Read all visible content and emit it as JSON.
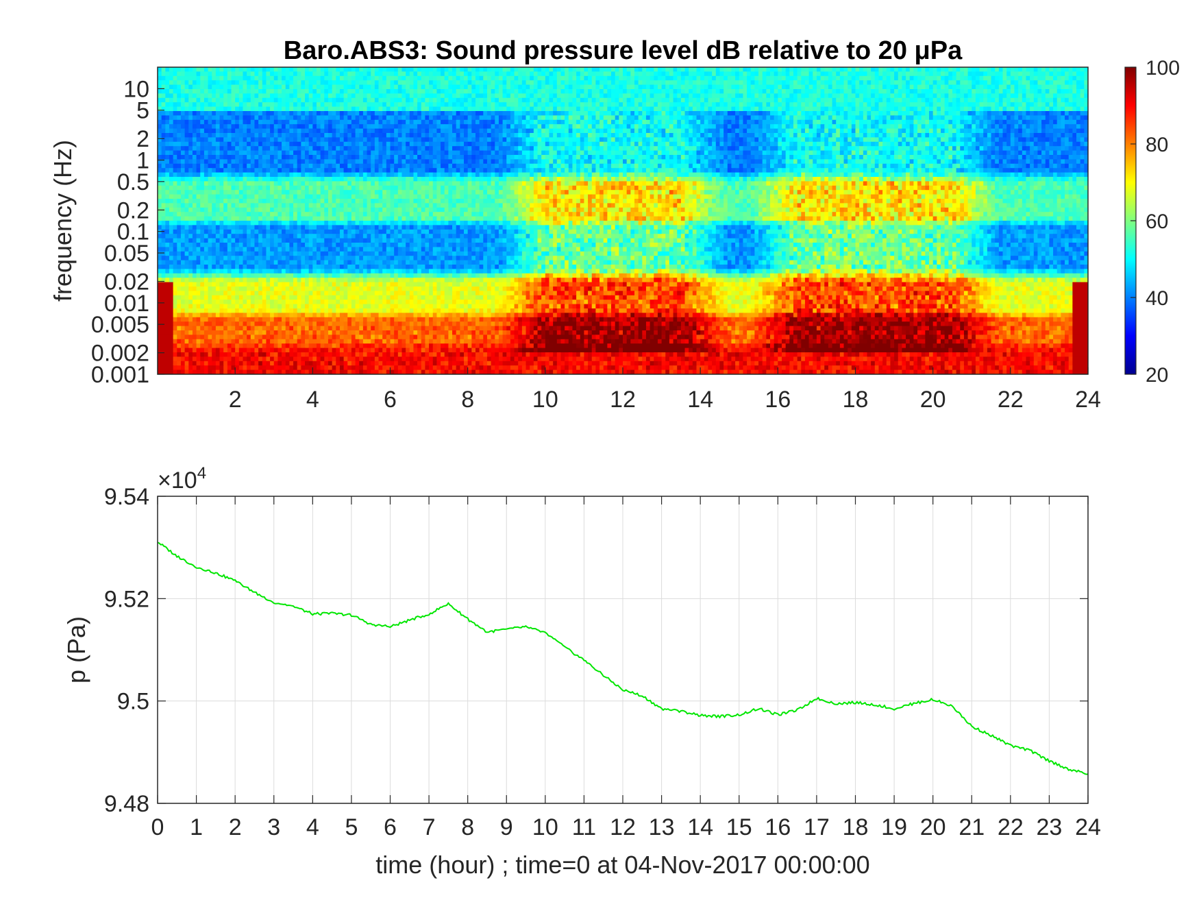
{
  "chart_data": [
    {
      "type": "heatmap",
      "title": "Baro.ABS3: Sound pressure level dB relative to 20 μPa",
      "ylabel": "frequency (Hz)",
      "xlabel": "",
      "y_scale": "log",
      "ylim": [
        0.001,
        20
      ],
      "xlim": [
        0,
        24
      ],
      "x_ticks": [
        2,
        4,
        6,
        8,
        10,
        12,
        14,
        16,
        18,
        20,
        22,
        24
      ],
      "x_tick_labels": [
        "2",
        "4",
        "6",
        "8",
        "10",
        "12",
        "14",
        "16",
        "18",
        "20",
        "22",
        "24"
      ],
      "y_ticks": [
        10,
        5,
        2,
        1,
        0.5,
        0.2,
        0.1,
        0.05,
        0.02,
        0.01,
        0.005,
        0.002,
        0.001
      ],
      "y_tick_labels": [
        "10",
        "5",
        "2",
        "1",
        "0.5",
        "0.2",
        "0.1",
        "0.05",
        "0.02",
        "0.01",
        "0.005",
        "0.002",
        "0.001"
      ],
      "colorbar": {
        "colormap": "jet",
        "range": [
          20,
          100
        ],
        "ticks": [
          20,
          40,
          60,
          80,
          100
        ],
        "tick_labels": [
          "20",
          "40",
          "60",
          "80",
          "100"
        ]
      },
      "level_bands": [
        {
          "freq_range": [
            5,
            20
          ],
          "level_db": 52
        },
        {
          "freq_range": [
            0.7,
            5
          ],
          "level_db": 40
        },
        {
          "freq_range": [
            0.15,
            0.5
          ],
          "level_db": 56
        },
        {
          "freq_range": [
            0.03,
            0.12
          ],
          "level_db": 42
        },
        {
          "freq_range": [
            0.008,
            0.02
          ],
          "level_db": 68
        },
        {
          "freq_range": [
            0.003,
            0.006
          ],
          "level_db": 82
        },
        {
          "freq_range": [
            0.001,
            0.002
          ],
          "level_db": 90
        }
      ],
      "active_periods_hours": [
        [
          10,
          13.5
        ],
        [
          16.5,
          20.5
        ]
      ]
    },
    {
      "type": "line",
      "xlabel": "time (hour) ; time=0 at 04-Nov-2017 00:00:00",
      "ylabel": "p (Pa)",
      "exponent_label": "×10",
      "exponent_power": "4",
      "xlim": [
        0,
        24
      ],
      "ylim": [
        94800,
        95400
      ],
      "grid": true,
      "line_color": "#00e600",
      "x_ticks": [
        0,
        1,
        2,
        3,
        4,
        5,
        6,
        7,
        8,
        9,
        10,
        11,
        12,
        13,
        14,
        15,
        16,
        17,
        18,
        19,
        20,
        21,
        22,
        23,
        24
      ],
      "x_tick_labels": [
        "0",
        "1",
        "2",
        "3",
        "4",
        "5",
        "6",
        "7",
        "8",
        "9",
        "10",
        "11",
        "12",
        "13",
        "14",
        "15",
        "16",
        "17",
        "18",
        "19",
        "20",
        "21",
        "22",
        "23",
        "24"
      ],
      "y_ticks": [
        94800,
        95000,
        95200,
        95400
      ],
      "y_tick_labels": [
        "9.48",
        "9.5",
        "9.52",
        "9.54"
      ],
      "series": [
        {
          "x": [
            0,
            0.5,
            1,
            1.5,
            2,
            2.5,
            3,
            3.5,
            4,
            4.5,
            5,
            5.5,
            6,
            6.5,
            7,
            7.5,
            8,
            8.5,
            9,
            9.5,
            10,
            10.5,
            11,
            11.5,
            12,
            12.5,
            13,
            13.5,
            14,
            14.5,
            15,
            15.5,
            16,
            16.5,
            17,
            17.5,
            18,
            18.5,
            19,
            19.5,
            20,
            20.5,
            21,
            21.5,
            22,
            22.5,
            23,
            23.5,
            24
          ],
          "y": [
            95311,
            95283,
            95262,
            95250,
            95235,
            95212,
            95193,
            95185,
            95170,
            95171,
            95168,
            95150,
            95145,
            95158,
            95170,
            95190,
            95160,
            95135,
            95140,
            95145,
            95133,
            95105,
            95080,
            95050,
            95022,
            95010,
            94985,
            94980,
            94972,
            94970,
            94973,
            94985,
            94973,
            94982,
            95005,
            94995,
            94997,
            94993,
            94985,
            94995,
            95003,
            94990,
            94950,
            94933,
            94913,
            94903,
            94883,
            94867,
            94857
          ]
        }
      ]
    }
  ]
}
